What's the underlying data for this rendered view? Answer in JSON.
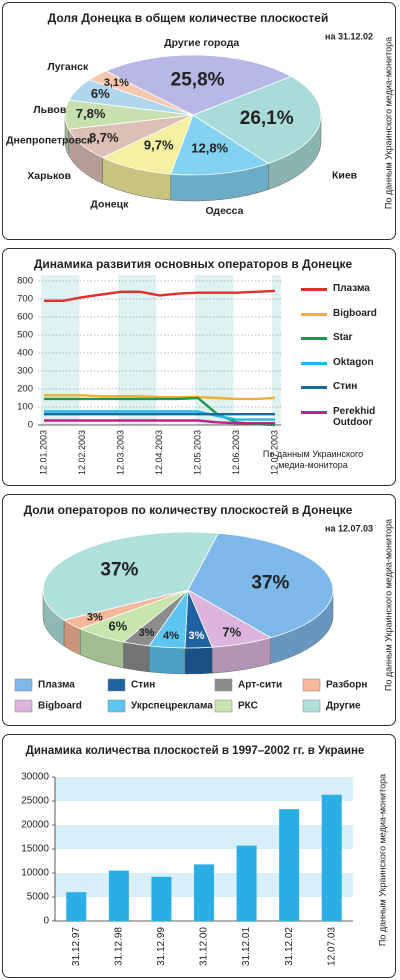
{
  "chart_data": [
    {
      "type": "pie",
      "title": "Доля Донецка в общем количестве плоскостей",
      "subtitle": "на 31.12.02",
      "source": "По данным Украинского медиа-монитора",
      "categories": [
        "Киев",
        "Одесса",
        "Донецк",
        "Харьков",
        "Днепропетровск",
        "Львов",
        "Луганск",
        "Другие города"
      ],
      "values": [
        26.1,
        12.8,
        9.7,
        8.7,
        7.8,
        6,
        3.1,
        25.8
      ],
      "value_labels": [
        "26,1%",
        "12,8%",
        "9,7%",
        "8,7%",
        "7,8%",
        "6%",
        "3,1%",
        "25,8%"
      ],
      "colors": [
        "#a9dcd8",
        "#84d2f2",
        "#f4f0a0",
        "#dcc0b6",
        "#c8e0b0",
        "#b0d6ee",
        "#f6c6ae",
        "#b8b8e6"
      ]
    },
    {
      "type": "line",
      "title": "Динамика развития основных операторов в Донецке",
      "source": "По данным Украинского медиа-монитора",
      "categories": [
        "12.01.2003",
        null,
        "12.02.2003",
        null,
        "12.03.2003",
        null,
        "12.04.2003",
        null,
        "12.05.2003",
        null,
        "12.06.2003",
        null,
        "12.07.2003"
      ],
      "ylim": [
        0,
        800
      ],
      "yticks": [
        0,
        100,
        200,
        300,
        400,
        500,
        600,
        700,
        800
      ],
      "grid": true,
      "series": [
        {
          "name": "Плазма",
          "color": "#e0302a",
          "values": [
            690,
            690,
            710,
            725,
            740,
            740,
            720,
            730,
            735,
            735,
            735,
            740,
            745
          ]
        },
        {
          "name": "Bigboard",
          "color": "#f0b030",
          "values": [
            165,
            165,
            165,
            160,
            160,
            160,
            155,
            155,
            155,
            150,
            145,
            145,
            150
          ]
        },
        {
          "name": "Star",
          "color": "#1a9a50",
          "values": [
            145,
            145,
            145,
            145,
            145,
            145,
            145,
            145,
            150,
            60,
            15,
            5,
            0
          ]
        },
        {
          "name": "Oktagon",
          "color": "#20b8e8",
          "values": [
            75,
            75,
            75,
            75,
            75,
            75,
            75,
            75,
            75,
            50,
            30,
            30,
            30
          ]
        },
        {
          "name": "Стин",
          "color": "#1a6a9a",
          "values": [
            60,
            60,
            60,
            60,
            60,
            60,
            60,
            60,
            60,
            60,
            60,
            60,
            60
          ]
        },
        {
          "name": "Perekhid Outdoor",
          "color": "#c0208a",
          "values": [
            25,
            25,
            25,
            25,
            25,
            25,
            25,
            25,
            25,
            15,
            10,
            10,
            10
          ]
        }
      ]
    },
    {
      "type": "pie",
      "title": "Доли операторов по количеству плоскостей в Донецке",
      "subtitle": "на 12.07.03",
      "source": "По данным Украинского медиа-монитора",
      "categories": [
        "Плазма",
        "Bigboard",
        "Стин",
        "Укрспецреклама",
        "Арт-сити",
        "РКС",
        "Разборн",
        "Другие"
      ],
      "values": [
        37,
        7,
        3,
        4,
        3,
        6,
        3,
        37
      ],
      "value_labels": [
        "37%",
        "7%",
        "3%",
        "4%",
        "3%",
        "6%",
        "3%",
        "37%"
      ],
      "colors": [
        "#7db8e8",
        "#dcb4dc",
        "#1f62a2",
        "#5cc6f0",
        "#8c8c8c",
        "#c6e6ae",
        "#f6b698",
        "#b0e0dc"
      ]
    },
    {
      "type": "bar",
      "title": "Динамика количества плоскостей в 1997–2002 гг. в Украине",
      "source": "По данным Украинского медиа-монитора",
      "categories": [
        "31.12.97",
        "31.12.98",
        "31.12.99",
        "31.12.00",
        "31.12.01",
        "31.12.02",
        "12.07.03"
      ],
      "values": [
        6000,
        10500,
        9200,
        11800,
        15700,
        23300,
        26300
      ],
      "color": "#29aee6",
      "ylim": [
        0,
        30000
      ],
      "yticks": [
        0,
        5000,
        10000,
        15000,
        20000,
        25000,
        30000
      ]
    }
  ]
}
